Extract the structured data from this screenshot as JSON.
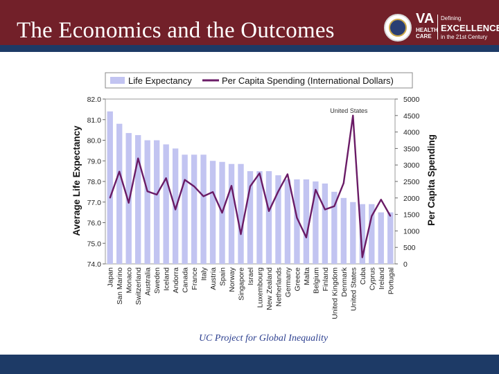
{
  "slide": {
    "title": "The Economics and the Outcomes",
    "credit": "UC Project for Global Inequality"
  },
  "logo": {
    "mark": "VA",
    "sub": "HEALTH CARE",
    "tagline_top": "Defining",
    "tagline_main": "EXCELLENCE",
    "tagline_bottom": "in the 21st Century"
  },
  "colors": {
    "header": "#722029",
    "stripe": "#1d3a66",
    "bars": "#c2c4f1",
    "line": "#6a1b66"
  },
  "chart_data": {
    "type": "bar",
    "legend": [
      "Life Expectancy",
      "Per Capita Spending (International Dollars)"
    ],
    "legend_position": "top",
    "ylabel": "Average Life Expectancy",
    "ylabel_right": "Per Capita Spending",
    "ylim": [
      74.0,
      82.0
    ],
    "yticks": [
      "74.0",
      "75.0",
      "76.0",
      "77.0",
      "78.0",
      "79.0",
      "80.0",
      "81.0",
      "82.0"
    ],
    "ylim_right": [
      0,
      5000
    ],
    "yticks_right": [
      "0",
      "500",
      "1000",
      "1500",
      "2000",
      "2500",
      "3000",
      "3500",
      "4000",
      "4500",
      "5000"
    ],
    "annotation": "United States",
    "categories": [
      "Japan",
      "San Marino",
      "Monaco",
      "Switzerland",
      "Australia",
      "Sweden",
      "Iceland",
      "Andorra",
      "Canada",
      "France",
      "Italy",
      "Austria",
      "Spain",
      "Norway",
      "Singapore",
      "Israel",
      "Luxembourg",
      "New Zealand",
      "Netherlands",
      "Germany",
      "Greece",
      "Malta",
      "Belgium",
      "Finland",
      "United Kingdom",
      "Denmark",
      "United States",
      "Cuba",
      "Cyprus",
      "Ireland",
      "Portugal"
    ],
    "series": [
      {
        "name": "Life Expectancy",
        "type": "bar",
        "values": [
          81.4,
          80.8,
          80.35,
          80.25,
          80.0,
          80.0,
          79.8,
          79.6,
          79.3,
          79.3,
          79.3,
          79.0,
          78.95,
          78.85,
          78.85,
          78.5,
          78.5,
          78.5,
          78.3,
          78.1,
          78.1,
          78.1,
          78.0,
          77.9,
          77.5,
          77.2,
          77.0,
          76.9,
          76.9,
          76.5,
          76.5
        ]
      },
      {
        "name": "Per Capita Spending (International Dollars)",
        "type": "line",
        "values": [
          2000,
          2800,
          1850,
          3200,
          2200,
          2100,
          2600,
          1650,
          2550,
          2350,
          2050,
          2180,
          1550,
          2370,
          900,
          2350,
          2750,
          1600,
          2200,
          2720,
          1400,
          800,
          2250,
          1650,
          1750,
          2450,
          4500,
          200,
          1450,
          1950,
          1450
        ]
      }
    ]
  }
}
